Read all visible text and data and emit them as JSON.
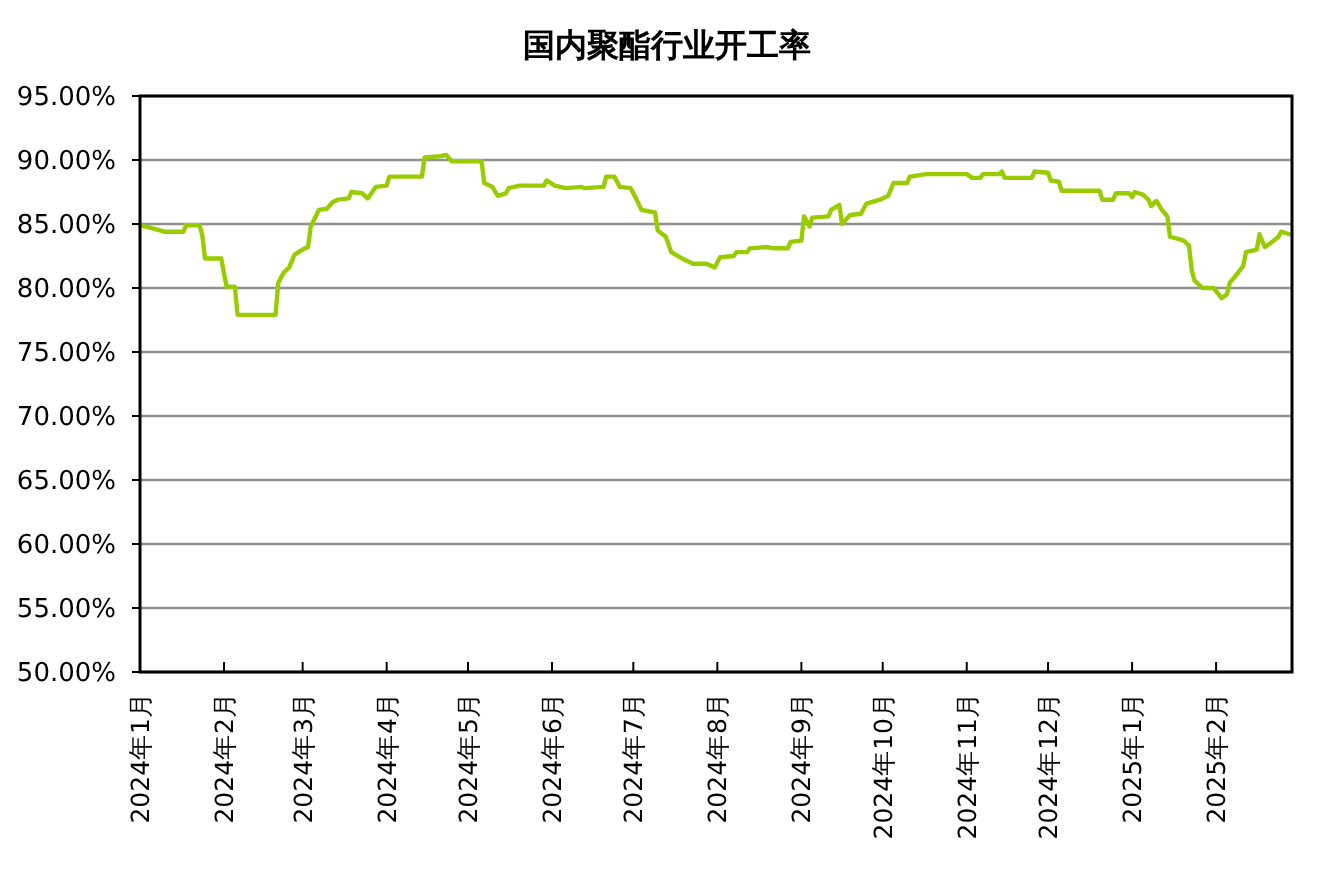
{
  "chart_data": {
    "type": "line",
    "title": "国内聚酯行业开工率",
    "x": [
      "2024-01-01",
      "2024-01-05",
      "2024-01-10",
      "2024-01-17",
      "2024-01-18",
      "2024-01-23",
      "2024-01-24",
      "2024-01-25",
      "2024-01-31",
      "2024-02-01",
      "2024-02-02",
      "2024-02-05",
      "2024-02-06",
      "2024-02-20",
      "2024-02-21",
      "2024-02-23",
      "2024-02-25",
      "2024-02-27",
      "2024-03-01",
      "2024-03-03",
      "2024-03-04",
      "2024-03-07",
      "2024-03-10",
      "2024-03-12",
      "2024-03-14",
      "2024-03-18",
      "2024-03-19",
      "2024-03-23",
      "2024-03-25",
      "2024-03-28",
      "2024-04-01",
      "2024-04-02",
      "2024-04-14",
      "2024-04-15",
      "2024-04-21",
      "2024-04-23",
      "2024-04-25",
      "2024-05-06",
      "2024-05-07",
      "2024-05-10",
      "2024-05-12",
      "2024-05-15",
      "2024-05-16",
      "2024-05-20",
      "2024-05-29",
      "2024-05-30",
      "2024-06-02",
      "2024-06-06",
      "2024-06-12",
      "2024-06-13",
      "2024-06-20",
      "2024-06-21",
      "2024-06-24",
      "2024-06-26",
      "2024-06-30",
      "2024-07-02",
      "2024-07-04",
      "2024-07-09",
      "2024-07-10",
      "2024-07-13",
      "2024-07-15",
      "2024-07-19",
      "2024-07-23",
      "2024-07-28",
      "2024-07-31",
      "2024-08-02",
      "2024-08-07",
      "2024-08-08",
      "2024-08-12",
      "2024-08-13",
      "2024-08-19",
      "2024-08-22",
      "2024-08-27",
      "2024-08-28",
      "2024-09-01",
      "2024-09-02",
      "2024-09-04",
      "2024-09-05",
      "2024-09-11",
      "2024-09-12",
      "2024-09-15",
      "2024-09-16",
      "2024-09-19",
      "2024-09-23",
      "2024-09-25",
      "2024-09-30",
      "2024-10-03",
      "2024-10-05",
      "2024-10-10",
      "2024-10-11",
      "2024-10-17",
      "2024-11-01",
      "2024-11-03",
      "2024-11-06",
      "2024-11-07",
      "2024-11-13",
      "2024-11-14",
      "2024-11-15",
      "2024-11-25",
      "2024-11-26",
      "2024-12-01",
      "2024-12-02",
      "2024-12-05",
      "2024-12-06",
      "2024-12-20",
      "2024-12-21",
      "2024-12-25",
      "2024-12-26",
      "2024-12-31",
      "2025-01-01",
      "2025-01-02",
      "2025-01-05",
      "2025-01-07",
      "2025-01-08",
      "2025-01-10",
      "2025-01-12",
      "2025-01-14",
      "2025-01-15",
      "2025-01-17",
      "2025-01-20",
      "2025-01-22",
      "2025-01-23",
      "2025-01-24",
      "2025-01-27",
      "2025-01-31",
      "2025-02-02",
      "2025-02-03",
      "2025-02-05",
      "2025-02-06",
      "2025-02-08",
      "2025-02-11",
      "2025-02-12",
      "2025-02-16",
      "2025-02-17",
      "2025-02-19",
      "2025-02-21",
      "2025-02-24",
      "2025-02-25",
      "2025-02-28"
    ],
    "series": [
      {
        "color": "#99cc00",
        "values": [
          84.9,
          84.7,
          84.4,
          84.4,
          84.9,
          84.9,
          84.1,
          82.3,
          82.3,
          81.1,
          80.1,
          80.1,
          77.9,
          77.9,
          80.4,
          81.2,
          81.6,
          82.6,
          83.0,
          83.2,
          84.8,
          86.1,
          86.2,
          86.7,
          86.9,
          87.0,
          87.5,
          87.4,
          87.0,
          87.9,
          88.0,
          88.7,
          88.7,
          90.2,
          90.3,
          90.4,
          89.9,
          89.9,
          88.2,
          87.9,
          87.2,
          87.4,
          87.8,
          88.0,
          88.0,
          88.4,
          88.0,
          87.8,
          87.9,
          87.8,
          87.9,
          88.7,
          88.7,
          87.9,
          87.8,
          87.0,
          86.1,
          85.9,
          84.5,
          84.0,
          82.8,
          82.3,
          81.9,
          81.9,
          81.6,
          82.4,
          82.5,
          82.8,
          82.8,
          83.1,
          83.2,
          83.1,
          83.1,
          83.6,
          83.7,
          85.6,
          84.8,
          85.5,
          85.6,
          86.1,
          86.5,
          85.0,
          85.7,
          85.8,
          86.6,
          86.9,
          87.2,
          88.2,
          88.2,
          88.7,
          88.9,
          88.9,
          88.6,
          88.6,
          88.9,
          88.9,
          89.1,
          88.6,
          88.6,
          89.1,
          89.0,
          88.4,
          88.3,
          87.6,
          87.6,
          86.9,
          86.9,
          87.4,
          87.4,
          87.1,
          87.5,
          87.3,
          86.9,
          86.4,
          86.8,
          86.1,
          85.6,
          84.0,
          83.9,
          83.7,
          83.3,
          81.4,
          80.6,
          80.0,
          80.0,
          79.5,
          79.2,
          79.5,
          80.4,
          80.9,
          81.7,
          82.8,
          83.0,
          84.2,
          83.2,
          83.5,
          84.0,
          84.4,
          84.2
        ]
      }
    ],
    "xlim": [
      "2024-01-01",
      "2025-03-01"
    ],
    "xticks": [
      {
        "value": "2024-01-01",
        "label": "2024年1月"
      },
      {
        "value": "2024-02-01",
        "label": "2024年2月"
      },
      {
        "value": "2024-03-01",
        "label": "2024年3月"
      },
      {
        "value": "2024-04-01",
        "label": "2024年4月"
      },
      {
        "value": "2024-05-01",
        "label": "2024年5月"
      },
      {
        "value": "2024-06-01",
        "label": "2024年6月"
      },
      {
        "value": "2024-07-01",
        "label": "2024年7月"
      },
      {
        "value": "2024-08-01",
        "label": "2024年8月"
      },
      {
        "value": "2024-09-01",
        "label": "2024年9月"
      },
      {
        "value": "2024-10-01",
        "label": "2024年10月"
      },
      {
        "value": "2024-11-01",
        "label": "2024年11月"
      },
      {
        "value": "2024-12-01",
        "label": "2024年12月"
      },
      {
        "value": "2025-01-01",
        "label": "2025年1月"
      },
      {
        "value": "2025-02-01",
        "label": "2025年2月"
      }
    ],
    "ylim": [
      50,
      95
    ],
    "yticks": [
      {
        "value": 50,
        "label": "50.00%"
      },
      {
        "value": 55,
        "label": "55.00%"
      },
      {
        "value": 60,
        "label": "60.00%"
      },
      {
        "value": 65,
        "label": "65.00%"
      },
      {
        "value": 70,
        "label": "70.00%"
      },
      {
        "value": 75,
        "label": "75.00%"
      },
      {
        "value": 80,
        "label": "80.00%"
      },
      {
        "value": 85,
        "label": "85.00%"
      },
      {
        "value": 90,
        "label": "90.00%"
      },
      {
        "value": 95,
        "label": "95.00%"
      }
    ],
    "grid": "y"
  }
}
